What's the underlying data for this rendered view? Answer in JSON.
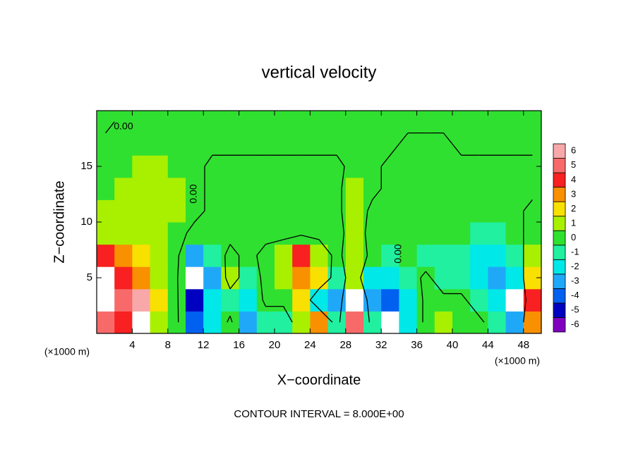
{
  "chart_data": {
    "type": "contour",
    "title": "vertical velocity",
    "xlabel": "X−coordinate",
    "ylabel": "Z−coordinate",
    "x_unit": "(×1000 m)",
    "y_unit": "(×1000 m)",
    "footnote": "CONTOUR INTERVAL = 8.000E+00",
    "contour_levels": [
      0
    ],
    "contour_labels": [
      "0.00",
      "0.00",
      "0.00"
    ],
    "xlim": [
      0,
      50
    ],
    "ylim": [
      0,
      20
    ],
    "xticks": [
      4,
      8,
      12,
      16,
      20,
      24,
      28,
      32,
      36,
      40,
      44,
      48
    ],
    "yticks": [
      5,
      10,
      15
    ],
    "x": [
      1,
      3,
      5,
      7,
      9,
      11,
      13,
      15,
      17,
      19,
      21,
      23,
      25,
      27,
      29,
      31,
      33,
      35,
      37,
      39,
      41,
      43,
      45,
      47,
      49
    ],
    "y": [
      1,
      3,
      5,
      7,
      9,
      11,
      13,
      15,
      17,
      19
    ],
    "z": [
      [
        5,
        4,
        7,
        1,
        0.4,
        -4,
        -2,
        0.4,
        -3,
        -1,
        -1,
        1,
        3,
        -1,
        5,
        -1,
        -7,
        -2,
        0.4,
        1,
        0.4,
        0.4,
        -1,
        -3,
        3
      ],
      [
        7,
        5,
        6,
        2,
        0.4,
        -5,
        -2,
        -1,
        -2,
        0.4,
        0.4,
        2,
        -2,
        -3,
        7,
        -3,
        -4,
        -2,
        0.4,
        0.4,
        0.4,
        -1,
        -2,
        -7,
        4
      ],
      [
        7,
        4,
        3,
        1,
        0.4,
        -7,
        -3,
        1,
        -1,
        0.4,
        1,
        3,
        2,
        -1,
        1,
        -2,
        -2,
        -1,
        0.4,
        -1,
        -1,
        -2,
        -3,
        -2,
        2
      ],
      [
        4,
        3,
        2,
        1,
        0.4,
        -3,
        -1,
        0.4,
        -0.4,
        0.4,
        1,
        4,
        1,
        -0.4,
        1,
        -0.4,
        -1,
        -0.4,
        -1,
        -1,
        -1,
        -2,
        -2,
        -1,
        1
      ],
      [
        1,
        1,
        1,
        1,
        0.5,
        -0.4,
        -0.4,
        -0.4,
        -0.4,
        -0.4,
        -0.4,
        -0.4,
        -0.4,
        -0.4,
        0.6,
        -0.4,
        -0.4,
        -0.4,
        -0.4,
        -0.4,
        -0.4,
        -1,
        -1,
        -0.4,
        0.4
      ],
      [
        1,
        1,
        1,
        1,
        0.8,
        0.4,
        -0.3,
        -0.3,
        -0.3,
        -0.3,
        -0.3,
        -0.3,
        -0.3,
        -0.3,
        0.8,
        -0.3,
        -0.3,
        -0.3,
        -0.3,
        -0.3,
        -0.3,
        -0.3,
        -0.3,
        -0.3,
        0.3
      ],
      [
        0.5,
        1,
        1,
        1,
        0.8,
        0.4,
        -0.3,
        -0.3,
        -0.3,
        -0.3,
        -0.3,
        -0.3,
        -0.3,
        -0.3,
        0.8,
        0.3,
        -0.3,
        -0.3,
        -0.3,
        -0.3,
        -0.3,
        -0.3,
        -0.3,
        -0.3,
        -0.3
      ],
      [
        0.4,
        0.5,
        0.6,
        0.6,
        0.5,
        0.4,
        -0.3,
        -0.3,
        -0.3,
        -0.3,
        -0.3,
        -0.3,
        -0.3,
        -0.3,
        0.4,
        0.3,
        -0.3,
        -0.3,
        -0.3,
        -0.3,
        -0.3,
        -0.3,
        -0.3,
        -0.3,
        -0.3
      ],
      [
        0.3,
        0.3,
        0.4,
        0.4,
        0.4,
        0.4,
        0.3,
        0.3,
        0.3,
        0.3,
        0.3,
        0.3,
        0.3,
        0.3,
        0.3,
        0.3,
        0.3,
        -0.3,
        -0.3,
        -0.3,
        0.3,
        0.3,
        0.3,
        0.3,
        0.3
      ],
      [
        -0.3,
        0.3,
        0.3,
        0.3,
        0.3,
        0.3,
        0.3,
        0.3,
        0.3,
        0.3,
        0.3,
        0.3,
        0.3,
        0.3,
        0.3,
        0.3,
        0.3,
        0.3,
        0.3,
        0.3,
        0.3,
        0.3,
        0.3,
        0.3,
        0.3
      ]
    ],
    "levels": [
      -6,
      -5,
      -4,
      -3,
      -2,
      -1,
      0,
      1,
      2,
      3,
      4,
      5,
      6
    ],
    "colors": [
      "#8000c0",
      "#0000c0",
      "#0060f0",
      "#20a8f8",
      "#00e8e8",
      "#20f0a0",
      "#30e030",
      "#a8f000",
      "#f8e000",
      "#f89000",
      "#f82020",
      "#f86a6a",
      "#f8a8a8"
    ],
    "out_of_range_color": "#ffffff"
  }
}
